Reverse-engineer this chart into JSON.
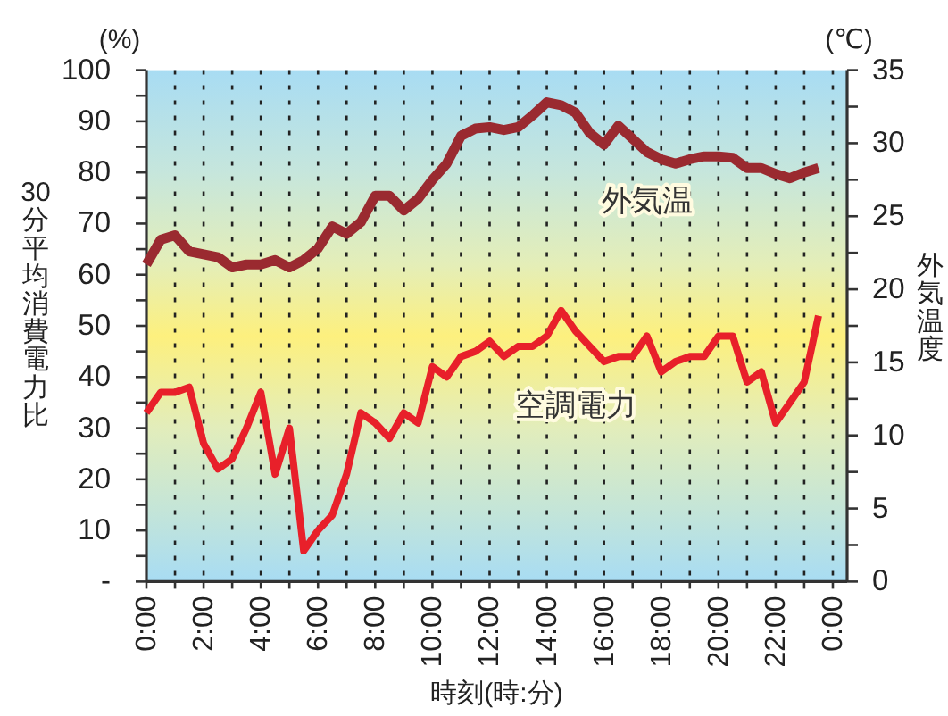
{
  "chart_data": {
    "type": "line",
    "xlabel": "時刻(時:分)",
    "ylabel": "30分平均消費電力比",
    "y2label": "外気温度",
    "annotations": [
      "(%)",
      "(℃)"
    ],
    "x": [
      0,
      0.5,
      1,
      1.5,
      2,
      2.5,
      3,
      3.5,
      4,
      4.5,
      5,
      5.5,
      6,
      6.5,
      7,
      7.5,
      8,
      8.5,
      9,
      9.5,
      10,
      10.5,
      11,
      11.5,
      12,
      12.5,
      13,
      13.5,
      14,
      14.5,
      15,
      15.5,
      16,
      16.5,
      17,
      17.5,
      18,
      18.5,
      19,
      19.5,
      20,
      20.5,
      21,
      21.5,
      22,
      22.5,
      23,
      23.5
    ],
    "xlim": [
      0,
      24.5
    ],
    "xticks": [
      {
        "value": 0,
        "label": "0:00"
      },
      {
        "value": 1,
        "label": null
      },
      {
        "value": 2,
        "label": "2:00"
      },
      {
        "value": 3,
        "label": null
      },
      {
        "value": 4,
        "label": "4:00"
      },
      {
        "value": 5,
        "label": null
      },
      {
        "value": 6,
        "label": "6:00"
      },
      {
        "value": 7,
        "label": null
      },
      {
        "value": 8,
        "label": "8:00"
      },
      {
        "value": 9,
        "label": null
      },
      {
        "value": 10,
        "label": "10:00"
      },
      {
        "value": 11,
        "label": null
      },
      {
        "value": 12,
        "label": "12:00"
      },
      {
        "value": 13,
        "label": null
      },
      {
        "value": 14,
        "label": "14:00"
      },
      {
        "value": 15,
        "label": null
      },
      {
        "value": 16,
        "label": "16:00"
      },
      {
        "value": 17,
        "label": null
      },
      {
        "value": 18,
        "label": "18:00"
      },
      {
        "value": 19,
        "label": null
      },
      {
        "value": 20,
        "label": "20:00"
      },
      {
        "value": 21,
        "label": null
      },
      {
        "value": 22,
        "label": "22:00"
      },
      {
        "value": 23,
        "label": null
      },
      {
        "value": 24,
        "label": "0:00"
      }
    ],
    "ylim": [
      0,
      100
    ],
    "yticks": [
      {
        "value": 0,
        "label": "-"
      },
      {
        "value": 5,
        "label": null
      },
      10,
      {
        "value": 15,
        "label": null
      },
      20,
      {
        "value": 25,
        "label": null
      },
      30,
      {
        "value": 35,
        "label": null
      },
      40,
      {
        "value": 45,
        "label": null
      },
      50,
      {
        "value": 55,
        "label": null
      },
      60,
      {
        "value": 65,
        "label": null
      },
      70,
      {
        "value": 75,
        "label": null
      },
      80,
      {
        "value": 85,
        "label": null
      },
      90,
      {
        "value": 95,
        "label": null
      },
      100
    ],
    "y2lim": [
      0,
      35
    ],
    "y2ticks": [
      0,
      {
        "value": 2.5,
        "label": null
      },
      5,
      {
        "value": 7.5,
        "label": null
      },
      10,
      {
        "value": 12.5,
        "label": null
      },
      15,
      {
        "value": 17.5,
        "label": null
      },
      20,
      {
        "value": 22.5,
        "label": null
      },
      25,
      {
        "value": 27.5,
        "label": null
      },
      30,
      {
        "value": 32.5,
        "label": null
      },
      35
    ],
    "grid": "x",
    "series": [
      {
        "name": "外気温",
        "color": "#9a2a30",
        "axis": "y2",
        "values": [
          21.7,
          23.4,
          23.7,
          22.6,
          22.4,
          22.2,
          21.5,
          21.7,
          21.7,
          22.0,
          21.5,
          22.0,
          22.8,
          24.3,
          23.8,
          24.6,
          26.4,
          26.4,
          25.4,
          26.2,
          27.5,
          28.6,
          30.5,
          31.0,
          31.1,
          30.9,
          31.1,
          31.9,
          32.8,
          32.6,
          32.1,
          30.7,
          29.9,
          31.2,
          30.3,
          29.4,
          28.9,
          28.6,
          28.9,
          29.1,
          29.1,
          29.0,
          28.3,
          28.3,
          27.9,
          27.6,
          28.0,
          28.3
        ]
      },
      {
        "name": "空調電力",
        "color": "#e8202a",
        "values": [
          33,
          37,
          37,
          38,
          27,
          22,
          24,
          30,
          37,
          21,
          30,
          6,
          10,
          13,
          21,
          33,
          31,
          28,
          33,
          31,
          42,
          40,
          44,
          45,
          47,
          44,
          46,
          46,
          48,
          53,
          49,
          46,
          43,
          44,
          44,
          48,
          41,
          43,
          44,
          44,
          48,
          48,
          39,
          41,
          31,
          35,
          39,
          52
        ]
      }
    ]
  }
}
